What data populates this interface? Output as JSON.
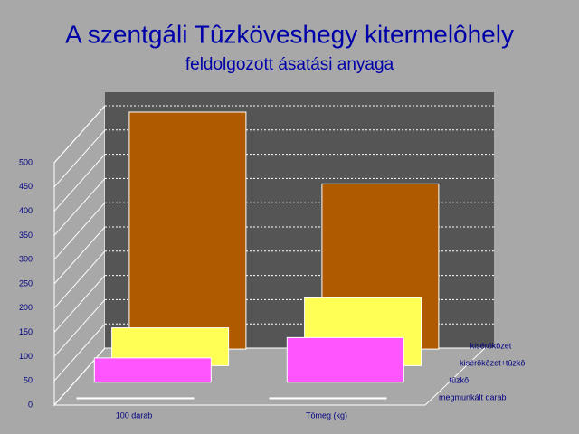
{
  "chart_data": {
    "type": "bar3d",
    "title": "A szentgáli Tûzköveshegy kitermelôhely",
    "subtitle": "feldolgozott ásatási anyaga",
    "categories": [
      "100 darab",
      "Tömeg (kg)"
    ],
    "series": [
      {
        "name": "megmunkált darab",
        "color": "#ffffff",
        "values": [
          2,
          2
        ]
      },
      {
        "name": "tûzkô",
        "color": "#ff55ff",
        "values": [
          50,
          92
        ]
      },
      {
        "name": "kisérôkôzet+tûzkô",
        "color": "#ffff55",
        "values": [
          78,
          140
        ]
      },
      {
        "name": "kisérôkôzet",
        "color": "#b05a00",
        "values": [
          489,
          341
        ]
      }
    ],
    "ylim": [
      0,
      500
    ],
    "yticks": [
      0,
      50,
      100,
      150,
      200,
      250,
      300,
      350,
      400,
      450,
      500
    ],
    "grid": true
  }
}
